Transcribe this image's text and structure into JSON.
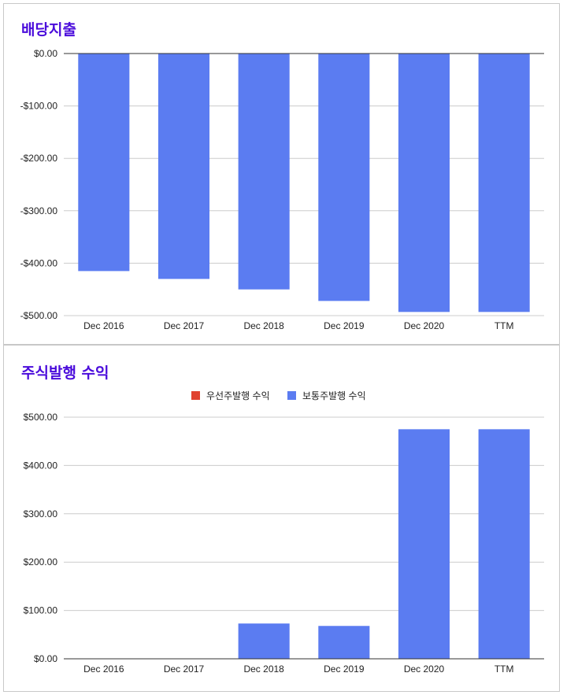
{
  "chart_data": [
    {
      "type": "bar",
      "title": "배당지출",
      "categories": [
        "Dec 2016",
        "Dec 2017",
        "Dec 2018",
        "Dec 2019",
        "Dec 2020",
        "TTM"
      ],
      "series": [
        {
          "values": [
            -415,
            -430,
            -450,
            -472,
            -493,
            -493
          ],
          "color": "#5b7cf1"
        }
      ],
      "ylim": [
        -500,
        0
      ],
      "yticks": [
        0,
        -100,
        -200,
        -300,
        -400,
        -500
      ],
      "ytick_labels": [
        "$0.00",
        "-$100.00",
        "-$200.00",
        "-$300.00",
        "-$400.00",
        "-$500.00"
      ],
      "grid": true,
      "legend": "none"
    },
    {
      "type": "bar",
      "title": "주식발행 수익",
      "categories": [
        "Dec 2016",
        "Dec 2017",
        "Dec 2018",
        "Dec 2019",
        "Dec 2020",
        "TTM"
      ],
      "series": [
        {
          "name": "우선주발행 수익",
          "values": [
            0,
            0,
            0,
            0,
            0,
            0
          ],
          "color": "#e0422f"
        },
        {
          "name": "보통주발행 수익",
          "values": [
            0,
            0,
            73,
            68,
            475,
            475
          ],
          "color": "#5b7cf1"
        }
      ],
      "ylim": [
        0,
        500
      ],
      "yticks": [
        0,
        100,
        200,
        300,
        400,
        500
      ],
      "ytick_labels": [
        "$0.00",
        "$100.00",
        "$200.00",
        "$300.00",
        "$400.00",
        "$500.00"
      ],
      "grid": true,
      "legend": "top"
    }
  ]
}
